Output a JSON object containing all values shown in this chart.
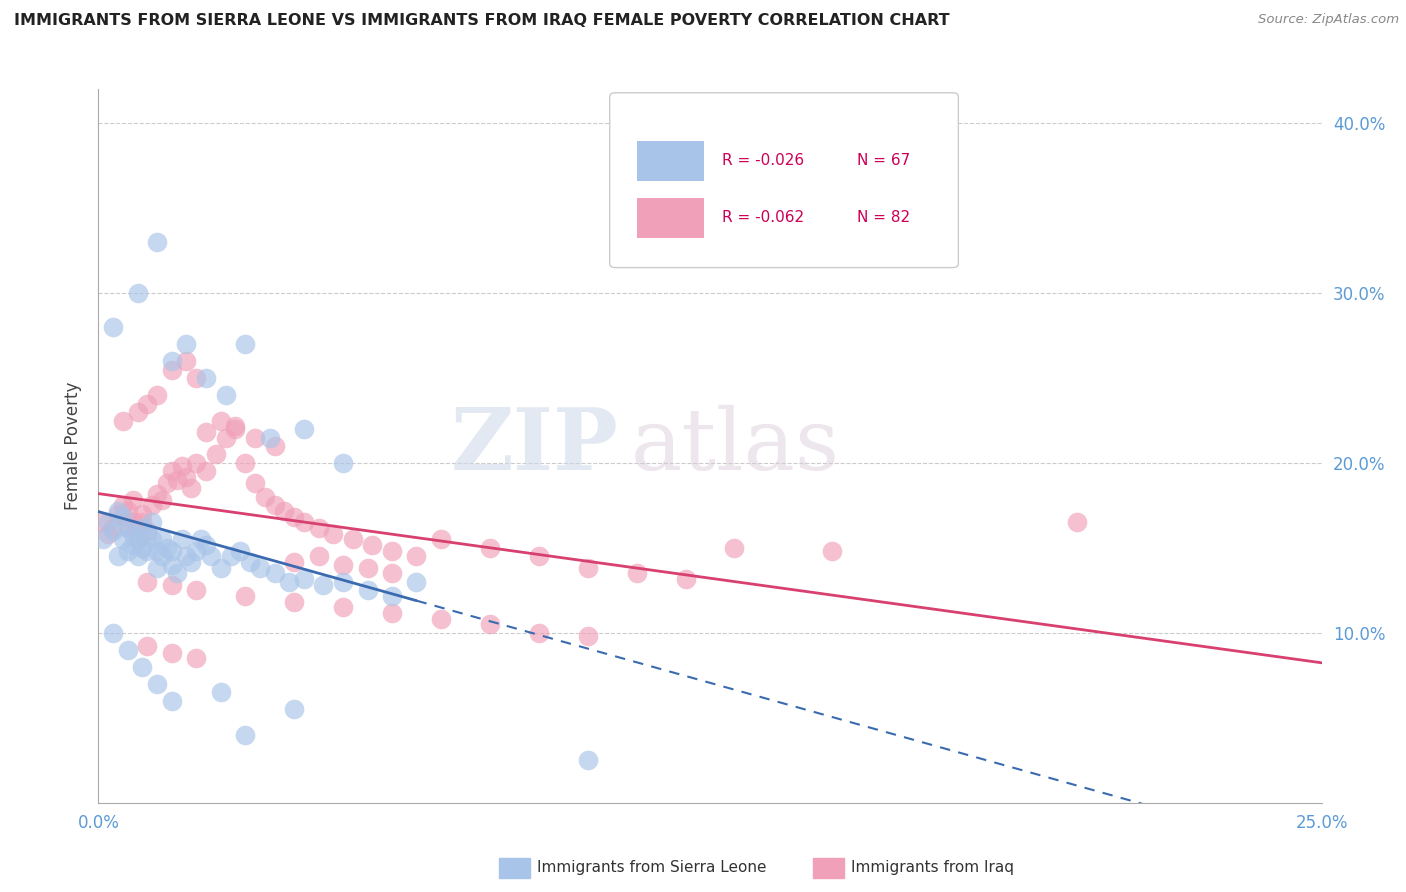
{
  "title": "IMMIGRANTS FROM SIERRA LEONE VS IMMIGRANTS FROM IRAQ FEMALE POVERTY CORRELATION CHART",
  "source": "Source: ZipAtlas.com",
  "ylabel": "Female Poverty",
  "xlim": [
    0.0,
    0.25
  ],
  "ylim": [
    0.0,
    0.42
  ],
  "yticks": [
    0.1,
    0.2,
    0.3,
    0.4
  ],
  "ytick_labels": [
    "10.0%",
    "20.0%",
    "30.0%",
    "40.0%"
  ],
  "xtick_positions": [
    0.0,
    0.25
  ],
  "xtick_labels": [
    "0.0%",
    "25.0%"
  ],
  "legend_r1": "R = -0.026",
  "legend_n1": "N = 67",
  "legend_r2": "R = -0.062",
  "legend_n2": "N = 82",
  "color_sierra": "#a8c4e8",
  "color_iraq": "#f0a0b8",
  "color_line_sierra": "#3a6ab0",
  "color_line_iraq": "#d84070",
  "bg_color": "#ffffff",
  "watermark_zip": "ZIP",
  "watermark_atlas": "atlas",
  "label_sierra": "Immigrants from Sierra Leone",
  "label_iraq": "Immigrants from Iraq",
  "sl_x": [
    0.001,
    0.002,
    0.003,
    0.004,
    0.004,
    0.005,
    0.005,
    0.006,
    0.006,
    0.007,
    0.007,
    0.008,
    0.008,
    0.009,
    0.009,
    0.01,
    0.01,
    0.011,
    0.011,
    0.012,
    0.012,
    0.013,
    0.013,
    0.014,
    0.015,
    0.015,
    0.016,
    0.017,
    0.018,
    0.019,
    0.02,
    0.021,
    0.022,
    0.023,
    0.025,
    0.027,
    0.029,
    0.031,
    0.033,
    0.036,
    0.039,
    0.042,
    0.046,
    0.05,
    0.055,
    0.06,
    0.065,
    0.003,
    0.008,
    0.012,
    0.015,
    0.018,
    0.022,
    0.026,
    0.03,
    0.035,
    0.042,
    0.05,
    0.1,
    0.003,
    0.006,
    0.009,
    0.012,
    0.015,
    0.025,
    0.03,
    0.04
  ],
  "sl_y": [
    0.155,
    0.165,
    0.16,
    0.172,
    0.145,
    0.168,
    0.155,
    0.162,
    0.148,
    0.158,
    0.152,
    0.155,
    0.145,
    0.162,
    0.15,
    0.158,
    0.148,
    0.165,
    0.155,
    0.148,
    0.138,
    0.155,
    0.145,
    0.15,
    0.148,
    0.14,
    0.135,
    0.155,
    0.145,
    0.142,
    0.148,
    0.155,
    0.152,
    0.145,
    0.138,
    0.145,
    0.148,
    0.142,
    0.138,
    0.135,
    0.13,
    0.132,
    0.128,
    0.13,
    0.125,
    0.122,
    0.13,
    0.28,
    0.3,
    0.33,
    0.26,
    0.27,
    0.25,
    0.24,
    0.27,
    0.215,
    0.22,
    0.2,
    0.025,
    0.1,
    0.09,
    0.08,
    0.07,
    0.06,
    0.065,
    0.04,
    0.055
  ],
  "iq_x": [
    0.001,
    0.002,
    0.003,
    0.004,
    0.005,
    0.005,
    0.006,
    0.006,
    0.007,
    0.007,
    0.008,
    0.008,
    0.009,
    0.009,
    0.01,
    0.011,
    0.012,
    0.013,
    0.014,
    0.015,
    0.016,
    0.017,
    0.018,
    0.019,
    0.02,
    0.022,
    0.024,
    0.026,
    0.028,
    0.03,
    0.032,
    0.034,
    0.036,
    0.038,
    0.04,
    0.042,
    0.045,
    0.048,
    0.052,
    0.056,
    0.06,
    0.065,
    0.07,
    0.08,
    0.09,
    0.1,
    0.11,
    0.12,
    0.13,
    0.15,
    0.2,
    0.005,
    0.008,
    0.01,
    0.012,
    0.015,
    0.018,
    0.02,
    0.022,
    0.025,
    0.028,
    0.032,
    0.036,
    0.04,
    0.045,
    0.05,
    0.055,
    0.06,
    0.01,
    0.015,
    0.02,
    0.03,
    0.04,
    0.05,
    0.06,
    0.07,
    0.08,
    0.09,
    0.1,
    0.01,
    0.015,
    0.02
  ],
  "iq_y": [
    0.165,
    0.158,
    0.162,
    0.17,
    0.175,
    0.168,
    0.172,
    0.162,
    0.178,
    0.165,
    0.162,
    0.155,
    0.17,
    0.165,
    0.16,
    0.175,
    0.182,
    0.178,
    0.188,
    0.195,
    0.19,
    0.198,
    0.192,
    0.185,
    0.2,
    0.195,
    0.205,
    0.215,
    0.222,
    0.2,
    0.188,
    0.18,
    0.175,
    0.172,
    0.168,
    0.165,
    0.162,
    0.158,
    0.155,
    0.152,
    0.148,
    0.145,
    0.155,
    0.15,
    0.145,
    0.138,
    0.135,
    0.132,
    0.15,
    0.148,
    0.165,
    0.225,
    0.23,
    0.235,
    0.24,
    0.255,
    0.26,
    0.25,
    0.218,
    0.225,
    0.22,
    0.215,
    0.21,
    0.142,
    0.145,
    0.14,
    0.138,
    0.135,
    0.13,
    0.128,
    0.125,
    0.122,
    0.118,
    0.115,
    0.112,
    0.108,
    0.105,
    0.1,
    0.098,
    0.092,
    0.088,
    0.085
  ]
}
